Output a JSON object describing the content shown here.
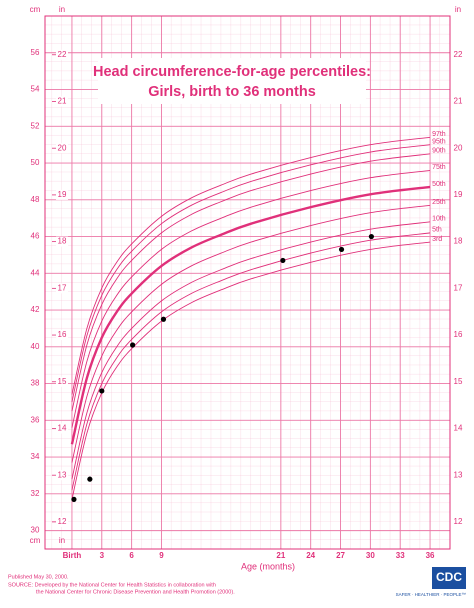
{
  "chart_data": {
    "type": "line",
    "title": "Head circumference-for-age percentiles:",
    "subtitle": "Girls, birth to 36 months",
    "xlabel": "Age (months)",
    "ylabel": "cm",
    "y2label": "in",
    "color": "#e0307a",
    "grid": true,
    "x": [
      0,
      1.5,
      3,
      4.5,
      6,
      9,
      12,
      15,
      18,
      24,
      30,
      36
    ],
    "xlim": [
      -1,
      37.5
    ],
    "xticks": [
      {
        "value": 0,
        "label": "Birth"
      },
      3,
      6,
      9,
      21,
      24,
      27,
      30,
      33,
      36
    ],
    "ylim": [
      29,
      58
    ],
    "yticks": [
      30,
      32,
      34,
      36,
      38,
      40,
      42,
      44,
      46,
      48,
      50,
      52,
      54,
      56
    ],
    "y2lim": [
      11.42,
      22.83
    ],
    "y2ticks": [
      12,
      13,
      14,
      15,
      16,
      17,
      18,
      19,
      20,
      21,
      22
    ],
    "series": [
      {
        "name": "97th",
        "values": [
          37.4,
          41.0,
          43.2,
          44.6,
          45.6,
          47.1,
          48.1,
          48.8,
          49.4,
          50.3,
          51.0,
          51.4
        ]
      },
      {
        "name": "95th",
        "values": [
          37.0,
          40.6,
          42.8,
          44.2,
          45.2,
          46.7,
          47.7,
          48.4,
          49.0,
          49.9,
          50.6,
          51.0
        ]
      },
      {
        "name": "90th",
        "values": [
          36.5,
          40.1,
          42.3,
          43.7,
          44.7,
          46.2,
          47.2,
          47.9,
          48.5,
          49.4,
          50.1,
          50.5
        ]
      },
      {
        "name": "75th",
        "values": [
          35.6,
          39.2,
          41.4,
          42.8,
          43.8,
          45.3,
          46.3,
          47.0,
          47.6,
          48.5,
          49.2,
          49.6
        ]
      },
      {
        "name": "50th",
        "values": [
          34.7,
          38.3,
          40.5,
          41.9,
          42.9,
          44.4,
          45.4,
          46.1,
          46.7,
          47.6,
          48.3,
          48.7
        ]
      },
      {
        "name": "25th",
        "values": [
          33.7,
          37.3,
          39.5,
          40.9,
          41.9,
          43.4,
          44.4,
          45.1,
          45.7,
          46.6,
          47.3,
          47.7
        ]
      },
      {
        "name": "10th",
        "values": [
          32.8,
          36.4,
          38.6,
          40.0,
          41.0,
          42.5,
          43.5,
          44.2,
          44.8,
          45.7,
          46.4,
          46.8
        ]
      },
      {
        "name": "5th",
        "values": [
          32.2,
          35.8,
          38.0,
          39.4,
          40.4,
          41.9,
          42.9,
          43.6,
          44.2,
          45.1,
          45.8,
          46.2
        ]
      },
      {
        "name": "3rd",
        "values": [
          31.7,
          35.3,
          37.5,
          38.9,
          39.9,
          41.4,
          42.4,
          43.1,
          43.7,
          44.6,
          45.3,
          45.7
        ]
      }
    ],
    "measurements": {
      "color": "#000000",
      "x": [
        0.2,
        1.8,
        3.0,
        6.1,
        9.2,
        21.2,
        27.1,
        30.1
      ],
      "values": [
        31.7,
        32.8,
        37.6,
        40.1,
        41.5,
        44.7,
        45.3,
        46.0
      ]
    },
    "notes": [
      "Published May 30, 2000.",
      "SOURCE: Developed by the National Center for Health Statistics in collaboration with",
      "the National Center for Chronic Disease Prevention and Health Promotion (2000)."
    ],
    "logo": "CDC",
    "tagline": "SAFER · HEALTHIER · PEOPLE™"
  }
}
